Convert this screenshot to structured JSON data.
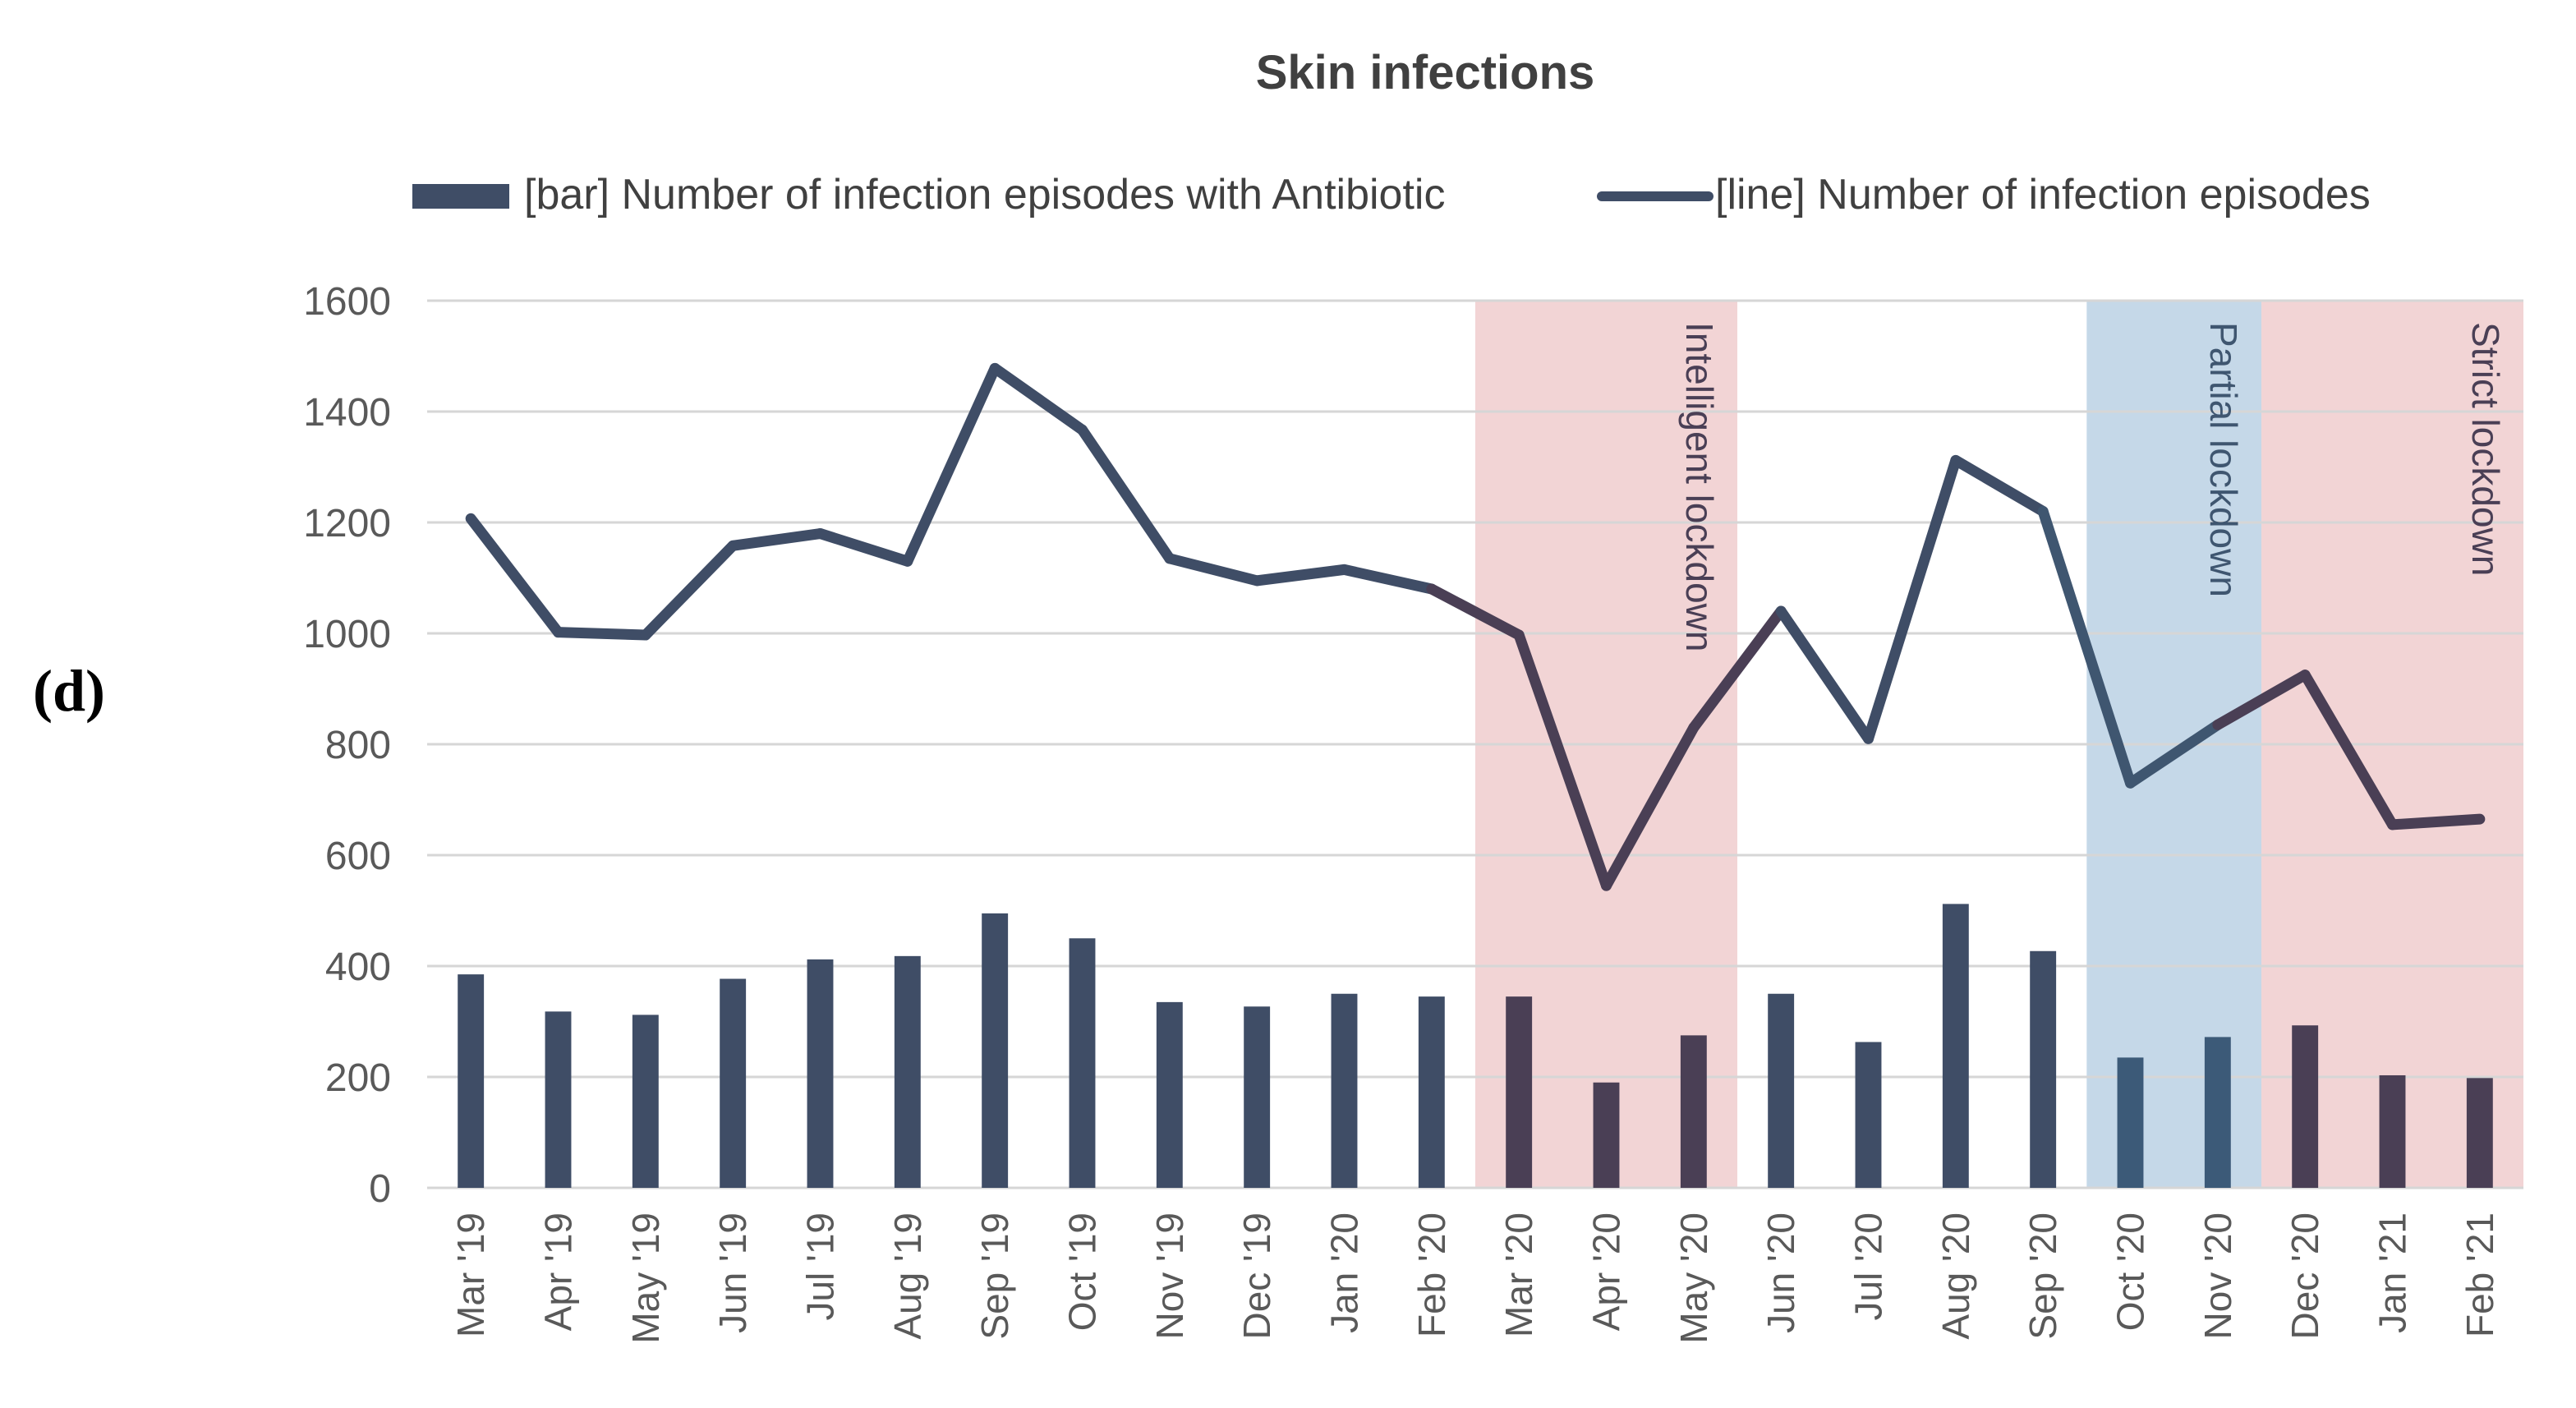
{
  "panel_label": "(d)",
  "colors": {
    "series": "#3f4d66",
    "bar_intelligent": "#4a3f55",
    "bar_partial": "#3c5a78",
    "bar_strict": "#4a3f55",
    "line_intelligent": "#4a3f55",
    "line_partial": "#3f5670",
    "line_strict": "#4a3f55",
    "band_intelligent": "#f2d4d5",
    "band_partial": "#c5d8e8",
    "band_strict": "#f2d4d5",
    "grid": "#d6d6d6",
    "axis_text": "#595959",
    "title": "#404040",
    "legend_text": "#404040"
  },
  "chart_data": {
    "type": "bar+line",
    "title": "Skin infections",
    "xlabel": "",
    "ylabel": "",
    "ylim": [
      0,
      1600
    ],
    "yticks": [
      "0",
      "200",
      "400",
      "600",
      "800",
      "1000",
      "1200",
      "1400",
      "1600"
    ],
    "grid": true,
    "legend_position": "top",
    "categories": [
      "Mar '19",
      "Apr '19",
      "May '19",
      "Jun '19",
      "Jul '19",
      "Aug '19",
      "Sep '19",
      "Oct '19",
      "Nov '19",
      "Dec '19",
      "Jan '20",
      "Feb '20",
      "Mar '20",
      "Apr '20",
      "May '20",
      "Jun '20",
      "Jul '20",
      "Aug '20",
      "Sep '20",
      "Oct '20",
      "Nov '20",
      "Dec '20",
      "Jan '21",
      "Feb '21"
    ],
    "series": [
      {
        "name": "[bar] Number of infection episodes with Antibiotic",
        "type": "bar",
        "values": [
          385,
          318,
          312,
          377,
          412,
          418,
          495,
          450,
          335,
          327,
          350,
          345,
          345,
          190,
          275,
          350,
          263,
          512,
          427,
          235,
          272,
          293,
          203,
          198
        ]
      },
      {
        "name": "[line] Number of infection episodes",
        "type": "line",
        "values": [
          1207,
          1002,
          997,
          1158,
          1180,
          1130,
          1478,
          1367,
          1135,
          1095,
          1115,
          1080,
          997,
          545,
          830,
          1040,
          810,
          1312,
          1220,
          730,
          835,
          925,
          655,
          665
        ]
      }
    ],
    "annotations": [
      {
        "label": "Intelligent lockdown",
        "start_index": 12,
        "end_index": 14,
        "kind": "intelligent"
      },
      {
        "label": "Partial lockdown",
        "start_index": 19,
        "end_index": 20,
        "kind": "partial"
      },
      {
        "label": "Strict lockdown",
        "start_index": 21,
        "end_index": 23,
        "kind": "strict"
      }
    ]
  }
}
